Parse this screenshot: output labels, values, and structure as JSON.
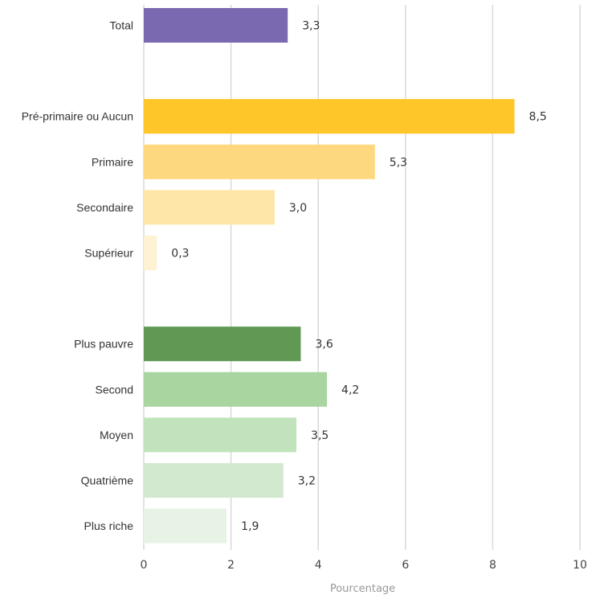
{
  "chart_data": {
    "type": "bar",
    "orientation": "horizontal",
    "categories": [
      "Total",
      "Pré-primaire ou Aucun",
      "Primaire",
      "Secondaire",
      "Supérieur",
      "Plus pauvre",
      "Second",
      "Moyen",
      "Quatrième",
      "Plus riche"
    ],
    "values": [
      3.3,
      8.5,
      5.3,
      3.0,
      0.3,
      3.6,
      4.2,
      3.5,
      3.2,
      1.9
    ],
    "value_labels": [
      "3,3",
      "8,5",
      "5,3",
      "3,0",
      "0,3",
      "3,6",
      "4,2",
      "3,5",
      "3,2",
      "1,9"
    ],
    "colors": [
      "#7a68b0",
      "#ffc629",
      "#fed87f",
      "#fde6a7",
      "#fef2d4",
      "#5f9953",
      "#a8d5a0",
      "#c0e3bb",
      "#d2e9cf",
      "#e7f3e5"
    ],
    "groups": [
      [
        0
      ],
      [
        1,
        2,
        3,
        4
      ],
      [
        5,
        6,
        7,
        8,
        9
      ]
    ],
    "xlim": [
      0,
      10
    ],
    "xticks": [
      0,
      2,
      4,
      6,
      8,
      10
    ],
    "xlabel": "Pourcentage",
    "ylabel": "",
    "title": "",
    "grid": "vertical",
    "legend": "none"
  }
}
